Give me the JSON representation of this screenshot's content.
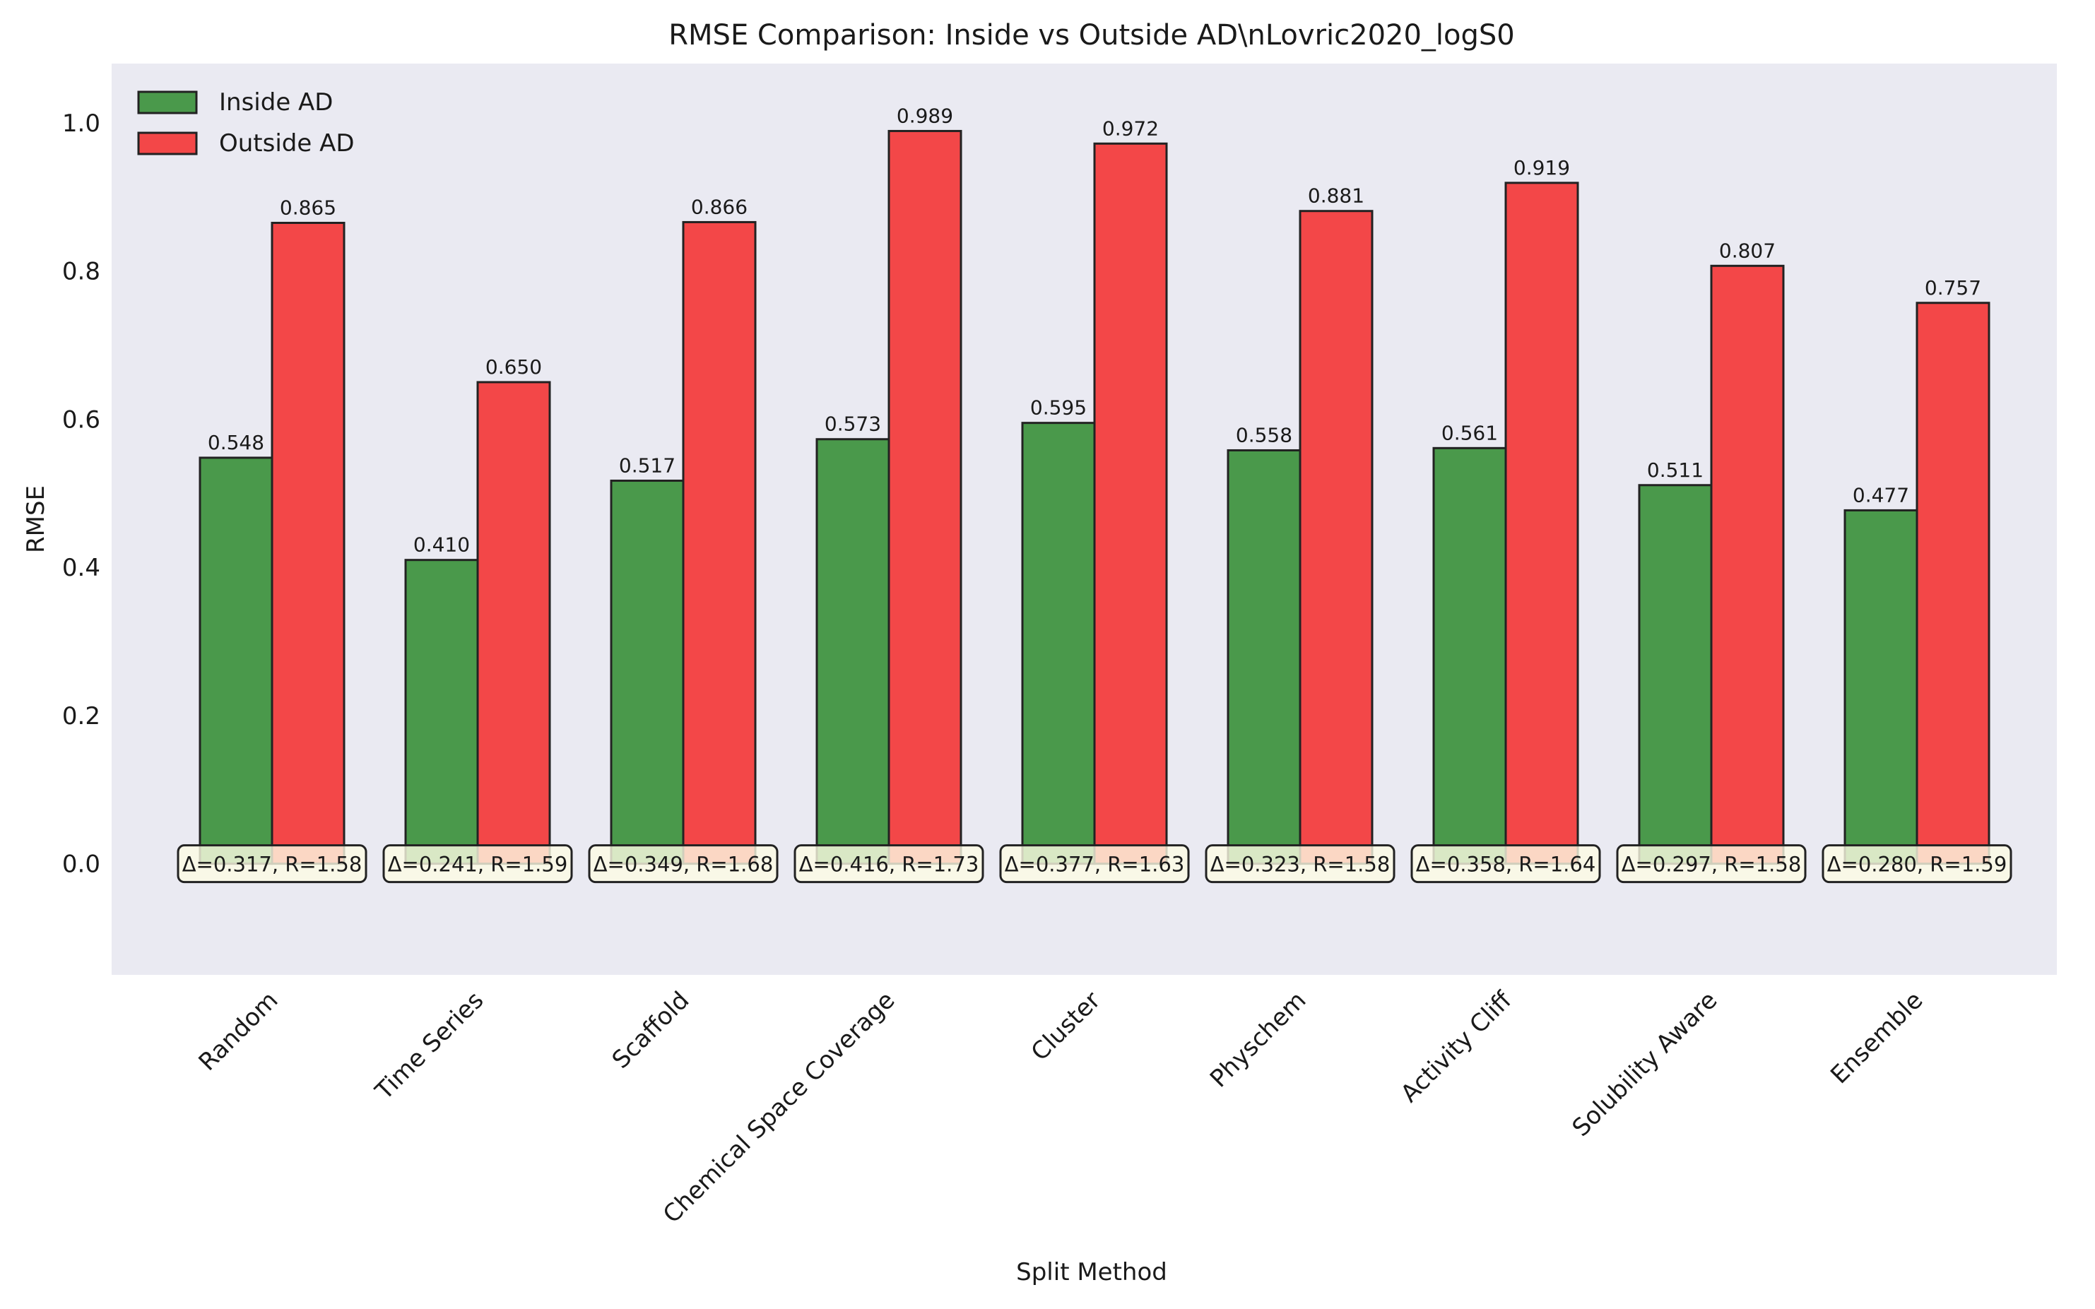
{
  "chart_data": {
    "type": "bar",
    "title": "RMSE Comparison: Inside vs Outside AD\\nLovric2020_logS0",
    "xlabel": "Split Method",
    "ylabel": "RMSE",
    "ylim": [
      -0.15,
      1.08
    ],
    "yticks": [
      0.0,
      0.2,
      0.4,
      0.6,
      0.8,
      1.0
    ],
    "ytick_labels": [
      "0.0",
      "0.2",
      "0.4",
      "0.6",
      "0.8",
      "1.0"
    ],
    "grid": false,
    "legend_position": "top-left",
    "categories": [
      "Random",
      "Time Series",
      "Scaffold",
      "Chemical Space Coverage",
      "Cluster",
      "Physchem",
      "Activity Cliff",
      "Solubility Aware",
      "Ensemble"
    ],
    "series": [
      {
        "name": "Inside AD",
        "color": "#2e8b2e",
        "values": [
          0.548,
          0.41,
          0.517,
          0.573,
          0.595,
          0.558,
          0.561,
          0.511,
          0.477
        ],
        "labels": [
          "0.548",
          "0.410",
          "0.517",
          "0.573",
          "0.595",
          "0.558",
          "0.561",
          "0.511",
          "0.477"
        ]
      },
      {
        "name": "Outside AD",
        "color": "#f52a2a",
        "values": [
          0.865,
          0.65,
          0.866,
          0.989,
          0.972,
          0.881,
          0.919,
          0.807,
          0.757
        ],
        "labels": [
          "0.865",
          "0.650",
          "0.866",
          "0.989",
          "0.972",
          "0.881",
          "0.919",
          "0.807",
          "0.757"
        ]
      }
    ],
    "annotations": [
      "Δ=0.317, R=1.58",
      "Δ=0.241, R=1.59",
      "Δ=0.349, R=1.68",
      "Δ=0.416, R=1.73",
      "Δ=0.377, R=1.63",
      "Δ=0.323, R=1.58",
      "Δ=0.358, R=1.64",
      "Δ=0.297, R=1.58",
      "Δ=0.280, R=1.59"
    ],
    "colors": {
      "plot_background": "#eaeaf2",
      "annotation_box": "#fdfbe4",
      "bar_edge": "#222222"
    }
  }
}
